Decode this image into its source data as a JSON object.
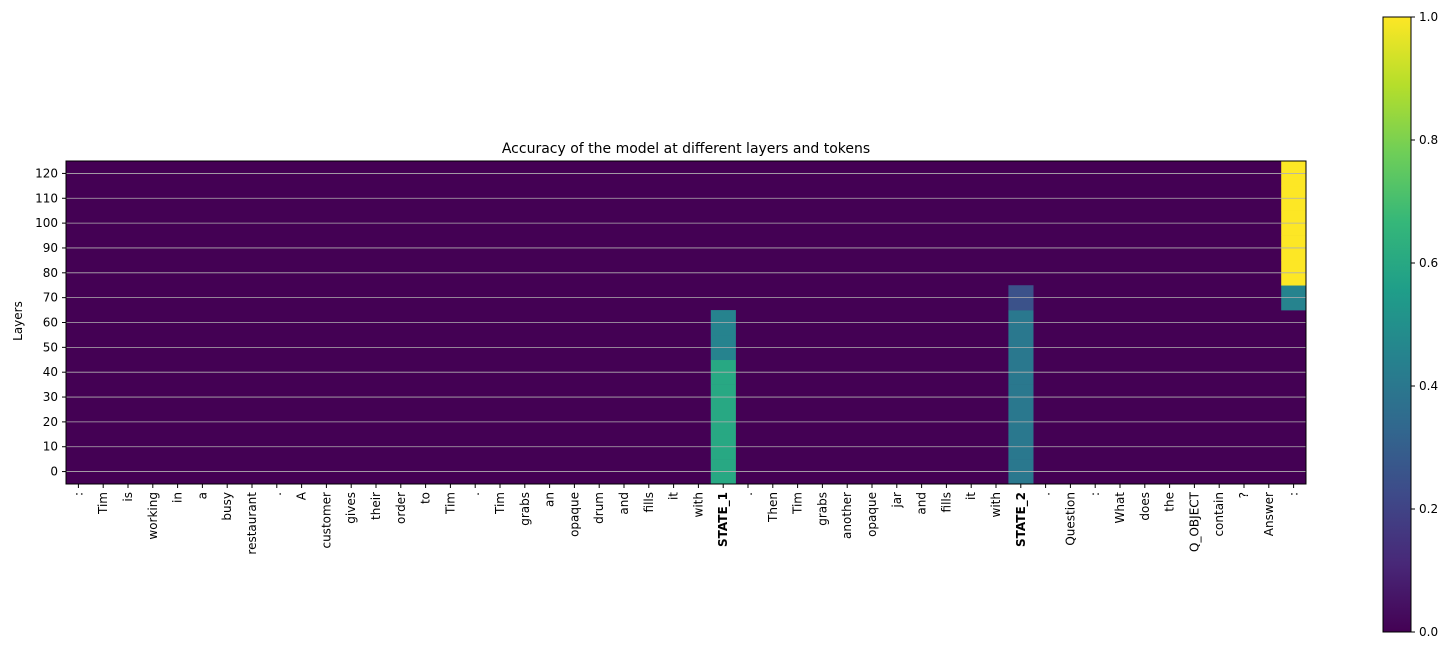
{
  "chart_data": {
    "type": "heatmap",
    "title": "Accuracy of the model at different layers and tokens",
    "ylabel": "Layers",
    "xlabel": "",
    "grid": "horizontal",
    "colormap": "viridis",
    "colorbar": {
      "range": [
        0.0,
        1.0
      ],
      "ticks": [
        "0.0",
        "0.2",
        "0.4",
        "0.6",
        "0.8",
        "1.0"
      ],
      "placement": "right"
    },
    "tokens": [
      ":",
      "Tim",
      "is",
      "working",
      "in",
      "a",
      "busy",
      "restaurant",
      ".",
      "A",
      "customer",
      "gives",
      "their",
      "order",
      "to",
      "Tim",
      ".",
      "Tim",
      "grabs",
      "an",
      "opaque",
      "drum",
      "and",
      "fills",
      "it",
      "with",
      "STATE_1",
      ".",
      "Then",
      "Tim",
      "grabs",
      "another",
      "opaque",
      "jar",
      "and",
      "fills",
      "it",
      "with",
      "STATE_2",
      ".",
      "Question",
      ":",
      "What",
      "does",
      "the",
      "Q_OBJECT",
      "contain",
      "?",
      "Answer",
      ":"
    ],
    "bold_tokens": [
      "STATE_1",
      "STATE_2"
    ],
    "layers": [
      0,
      10,
      20,
      30,
      40,
      50,
      60,
      70,
      80,
      90,
      100,
      110,
      120
    ],
    "y_ticks": [
      "0",
      "10",
      "20",
      "30",
      "40",
      "50",
      "60",
      "70",
      "80",
      "90",
      "100",
      "110",
      "120"
    ],
    "ylim": [
      -5,
      125
    ],
    "default_value": 0.0,
    "nonzero_cells": [
      {
        "token_index": 26,
        "token": "STATE_1",
        "layers": [
          0,
          10,
          20,
          30,
          40
        ],
        "value": 0.6
      },
      {
        "token_index": 26,
        "token": "STATE_1",
        "layers": [
          50,
          60
        ],
        "value": 0.45
      },
      {
        "token_index": 38,
        "token": "STATE_2",
        "layers": [
          0,
          10,
          20,
          30,
          40,
          50,
          60
        ],
        "value": 0.4
      },
      {
        "token_index": 38,
        "token": "STATE_2",
        "layers": [
          70
        ],
        "value": 0.25
      },
      {
        "token_index": 49,
        "token": ":",
        "layers": [
          70
        ],
        "value": 0.45
      },
      {
        "token_index": 49,
        "token": ":",
        "layers": [
          80,
          90,
          100,
          110,
          120
        ],
        "value": 1.0
      }
    ]
  }
}
